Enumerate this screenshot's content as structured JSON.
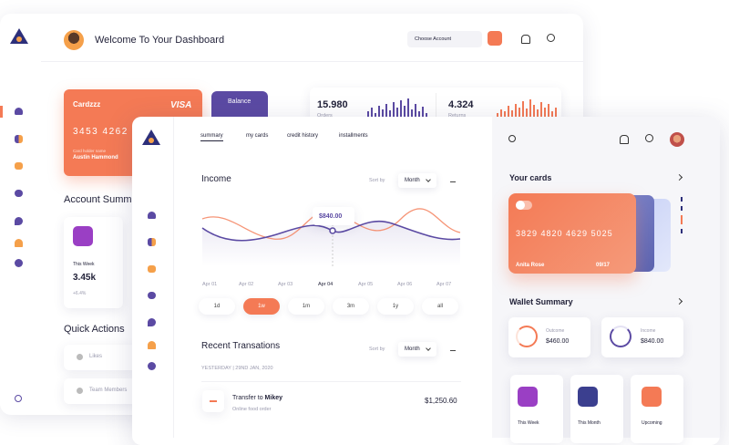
{
  "back": {
    "title": "Welcome To Your Dashboard",
    "account_select": "Choose Account",
    "card": {
      "name": "Cardzzz",
      "brand": "VISA",
      "number": "3453 4262",
      "holder_label": "Card holder name",
      "holder": "Austin Hammond"
    },
    "balance": "Balance",
    "stats": [
      {
        "value": "15.980",
        "label": "Orders"
      },
      {
        "value": "4.324",
        "label": "Returns"
      }
    ],
    "account_summary": {
      "title": "Account Summary",
      "period": "This Week",
      "value": "3.45k",
      "change": "+6.4%"
    },
    "quick_actions": {
      "title": "Quick Actions",
      "items": [
        "Likes",
        "Team Members"
      ]
    }
  },
  "front": {
    "tabs": [
      "summary",
      "my cards",
      "credit history",
      "installments"
    ],
    "income": {
      "title": "Income",
      "sort_label": "Sort by",
      "sort_value": "Month",
      "tooltip_value": "$840.00",
      "x_labels": [
        "Apr 01",
        "Apr 02",
        "Apr 03",
        "Apr 04",
        "Apr 05",
        "Apr 06",
        "Apr 07"
      ],
      "ranges": [
        "1d",
        "1w",
        "1m",
        "3m",
        "1y",
        "all"
      ]
    },
    "transactions": {
      "title": "Recent Transations",
      "sort_label": "Sort by",
      "sort_value": "Month",
      "date": "YESTERDAY | 29ND JAN, 2020",
      "items": [
        {
          "title": "Transfer to",
          "recipient": "Mikey",
          "subtitle": "Online food order",
          "amount": "$1,250.60"
        }
      ]
    }
  },
  "panel": {
    "your_cards": "Your cards",
    "card": {
      "number": "3829 4820 4629 5025",
      "holder": "Anita Rose",
      "expiry": "09/17"
    },
    "wallet_summary": "Wallet Summary",
    "wallet": [
      {
        "label": "Outcome",
        "value": "$460.00"
      },
      {
        "label": "Income",
        "value": "$840.00"
      }
    ],
    "periods": [
      "This Week",
      "This Month",
      "Upcoming"
    ]
  }
}
